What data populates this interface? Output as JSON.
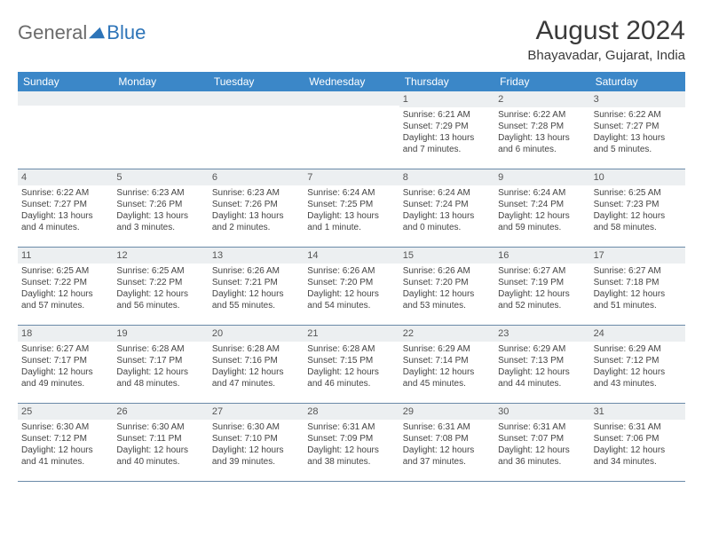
{
  "logo": {
    "general": "General",
    "blue": "Blue"
  },
  "title": "August 2024",
  "location": "Bhayavadar, Gujarat, India",
  "colors": {
    "header_bg": "#3b87c8",
    "header_text": "#ffffff",
    "daynum_bg": "#eceff1",
    "border": "#6a8aa8",
    "logo_gray": "#6b6b6b",
    "logo_blue": "#2d74b8",
    "text": "#444444"
  },
  "day_headers": [
    "Sunday",
    "Monday",
    "Tuesday",
    "Wednesday",
    "Thursday",
    "Friday",
    "Saturday"
  ],
  "cells": [
    {
      "n": "",
      "sr": "",
      "ss": "",
      "dl": ""
    },
    {
      "n": "",
      "sr": "",
      "ss": "",
      "dl": ""
    },
    {
      "n": "",
      "sr": "",
      "ss": "",
      "dl": ""
    },
    {
      "n": "",
      "sr": "",
      "ss": "",
      "dl": ""
    },
    {
      "n": "1",
      "sr": "Sunrise: 6:21 AM",
      "ss": "Sunset: 7:29 PM",
      "dl": "Daylight: 13 hours and 7 minutes."
    },
    {
      "n": "2",
      "sr": "Sunrise: 6:22 AM",
      "ss": "Sunset: 7:28 PM",
      "dl": "Daylight: 13 hours and 6 minutes."
    },
    {
      "n": "3",
      "sr": "Sunrise: 6:22 AM",
      "ss": "Sunset: 7:27 PM",
      "dl": "Daylight: 13 hours and 5 minutes."
    },
    {
      "n": "4",
      "sr": "Sunrise: 6:22 AM",
      "ss": "Sunset: 7:27 PM",
      "dl": "Daylight: 13 hours and 4 minutes."
    },
    {
      "n": "5",
      "sr": "Sunrise: 6:23 AM",
      "ss": "Sunset: 7:26 PM",
      "dl": "Daylight: 13 hours and 3 minutes."
    },
    {
      "n": "6",
      "sr": "Sunrise: 6:23 AM",
      "ss": "Sunset: 7:26 PM",
      "dl": "Daylight: 13 hours and 2 minutes."
    },
    {
      "n": "7",
      "sr": "Sunrise: 6:24 AM",
      "ss": "Sunset: 7:25 PM",
      "dl": "Daylight: 13 hours and 1 minute."
    },
    {
      "n": "8",
      "sr": "Sunrise: 6:24 AM",
      "ss": "Sunset: 7:24 PM",
      "dl": "Daylight: 13 hours and 0 minutes."
    },
    {
      "n": "9",
      "sr": "Sunrise: 6:24 AM",
      "ss": "Sunset: 7:24 PM",
      "dl": "Daylight: 12 hours and 59 minutes."
    },
    {
      "n": "10",
      "sr": "Sunrise: 6:25 AM",
      "ss": "Sunset: 7:23 PM",
      "dl": "Daylight: 12 hours and 58 minutes."
    },
    {
      "n": "11",
      "sr": "Sunrise: 6:25 AM",
      "ss": "Sunset: 7:22 PM",
      "dl": "Daylight: 12 hours and 57 minutes."
    },
    {
      "n": "12",
      "sr": "Sunrise: 6:25 AM",
      "ss": "Sunset: 7:22 PM",
      "dl": "Daylight: 12 hours and 56 minutes."
    },
    {
      "n": "13",
      "sr": "Sunrise: 6:26 AM",
      "ss": "Sunset: 7:21 PM",
      "dl": "Daylight: 12 hours and 55 minutes."
    },
    {
      "n": "14",
      "sr": "Sunrise: 6:26 AM",
      "ss": "Sunset: 7:20 PM",
      "dl": "Daylight: 12 hours and 54 minutes."
    },
    {
      "n": "15",
      "sr": "Sunrise: 6:26 AM",
      "ss": "Sunset: 7:20 PM",
      "dl": "Daylight: 12 hours and 53 minutes."
    },
    {
      "n": "16",
      "sr": "Sunrise: 6:27 AM",
      "ss": "Sunset: 7:19 PM",
      "dl": "Daylight: 12 hours and 52 minutes."
    },
    {
      "n": "17",
      "sr": "Sunrise: 6:27 AM",
      "ss": "Sunset: 7:18 PM",
      "dl": "Daylight: 12 hours and 51 minutes."
    },
    {
      "n": "18",
      "sr": "Sunrise: 6:27 AM",
      "ss": "Sunset: 7:17 PM",
      "dl": "Daylight: 12 hours and 49 minutes."
    },
    {
      "n": "19",
      "sr": "Sunrise: 6:28 AM",
      "ss": "Sunset: 7:17 PM",
      "dl": "Daylight: 12 hours and 48 minutes."
    },
    {
      "n": "20",
      "sr": "Sunrise: 6:28 AM",
      "ss": "Sunset: 7:16 PM",
      "dl": "Daylight: 12 hours and 47 minutes."
    },
    {
      "n": "21",
      "sr": "Sunrise: 6:28 AM",
      "ss": "Sunset: 7:15 PM",
      "dl": "Daylight: 12 hours and 46 minutes."
    },
    {
      "n": "22",
      "sr": "Sunrise: 6:29 AM",
      "ss": "Sunset: 7:14 PM",
      "dl": "Daylight: 12 hours and 45 minutes."
    },
    {
      "n": "23",
      "sr": "Sunrise: 6:29 AM",
      "ss": "Sunset: 7:13 PM",
      "dl": "Daylight: 12 hours and 44 minutes."
    },
    {
      "n": "24",
      "sr": "Sunrise: 6:29 AM",
      "ss": "Sunset: 7:12 PM",
      "dl": "Daylight: 12 hours and 43 minutes."
    },
    {
      "n": "25",
      "sr": "Sunrise: 6:30 AM",
      "ss": "Sunset: 7:12 PM",
      "dl": "Daylight: 12 hours and 41 minutes."
    },
    {
      "n": "26",
      "sr": "Sunrise: 6:30 AM",
      "ss": "Sunset: 7:11 PM",
      "dl": "Daylight: 12 hours and 40 minutes."
    },
    {
      "n": "27",
      "sr": "Sunrise: 6:30 AM",
      "ss": "Sunset: 7:10 PM",
      "dl": "Daylight: 12 hours and 39 minutes."
    },
    {
      "n": "28",
      "sr": "Sunrise: 6:31 AM",
      "ss": "Sunset: 7:09 PM",
      "dl": "Daylight: 12 hours and 38 minutes."
    },
    {
      "n": "29",
      "sr": "Sunrise: 6:31 AM",
      "ss": "Sunset: 7:08 PM",
      "dl": "Daylight: 12 hours and 37 minutes."
    },
    {
      "n": "30",
      "sr": "Sunrise: 6:31 AM",
      "ss": "Sunset: 7:07 PM",
      "dl": "Daylight: 12 hours and 36 minutes."
    },
    {
      "n": "31",
      "sr": "Sunrise: 6:31 AM",
      "ss": "Sunset: 7:06 PM",
      "dl": "Daylight: 12 hours and 34 minutes."
    }
  ]
}
